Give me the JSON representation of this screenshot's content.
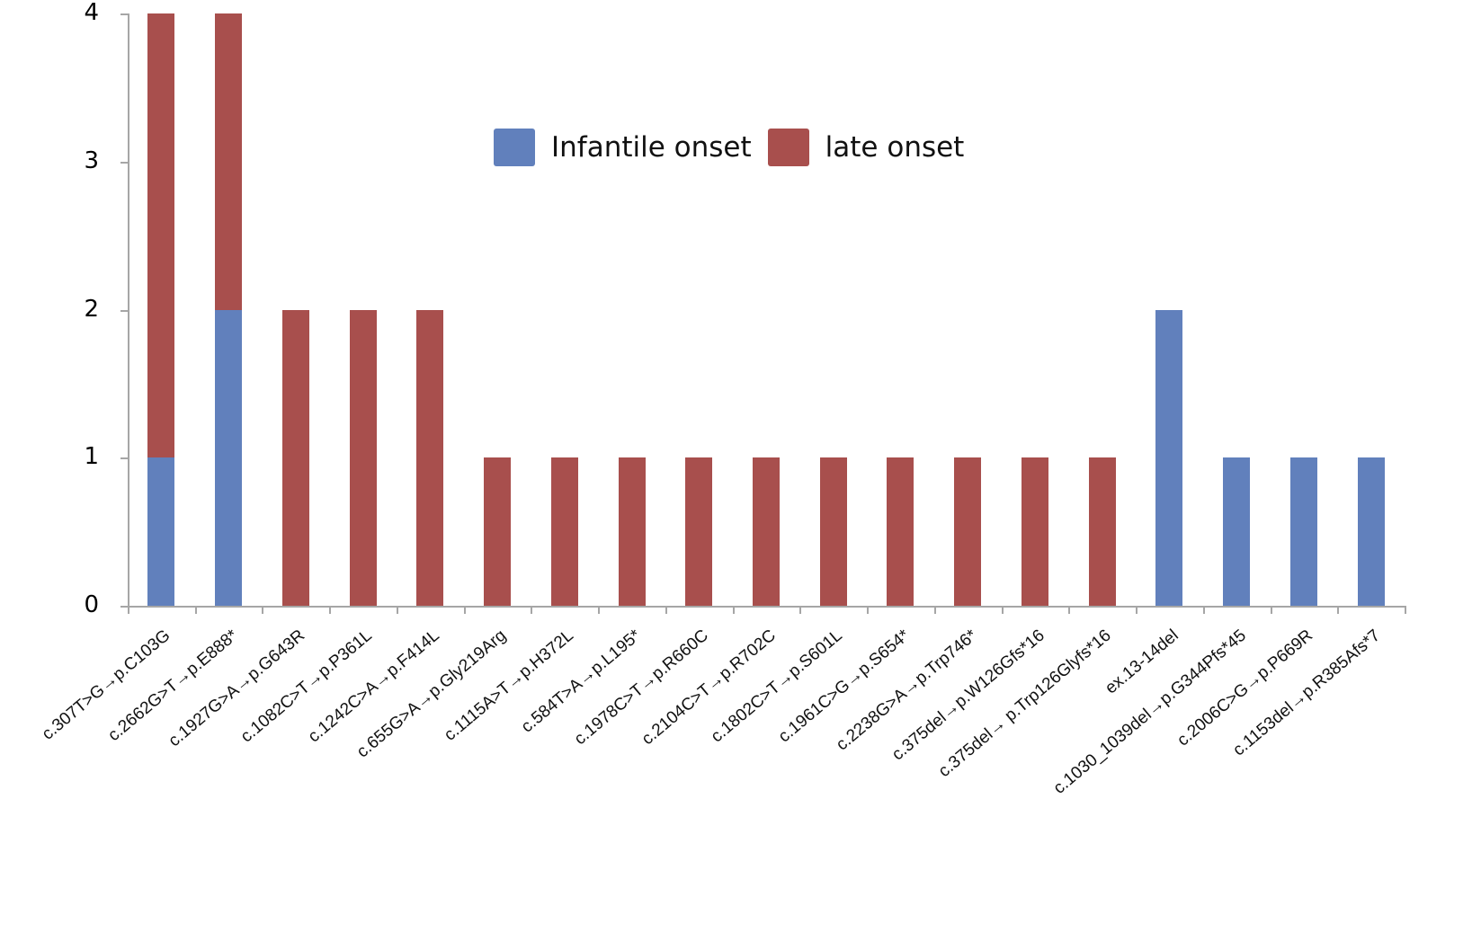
{
  "chart_data": {
    "type": "bar",
    "stacked": true,
    "title": "",
    "xlabel": "",
    "ylabel": "",
    "ylim": [
      0,
      4
    ],
    "yticks": [
      0,
      1,
      2,
      3,
      4
    ],
    "grid": false,
    "legend_position": "top-center (inside plot)",
    "categories": [
      "c.307T>G→p.C103G",
      "c.2662G>T→p.E888*",
      "c.1927G>A→p.G643R",
      "c.1082C>T→p.P361L",
      "c.1242C>A→p.F414L",
      "c.655G>A→p.Gly219Arg",
      "c.1115A>T→p.H372L",
      "c.584T>A→p.L195*",
      "c.1978C>T→p.R660C",
      "c.2104C>T→p.R702C",
      "c.1802C>T→p.S601L",
      "c.1961C>G→p.S654*",
      "c.2238G>A→p.Trp746*",
      "c.375del→p.W126Gfs*16",
      "c.375del→ p.Trp126Glyfs*16",
      "ex.13-14del",
      "c.1030_1039del→p.G344Pfs*45",
      "c.2006C>G→p.P669R",
      "c.1153del→p.R385Afs*7"
    ],
    "series": [
      {
        "name": "Infantile onset",
        "color": "#6180bc",
        "values": [
          1,
          2,
          0,
          0,
          0,
          0,
          0,
          0,
          0,
          0,
          0,
          0,
          0,
          0,
          0,
          2,
          1,
          1,
          1
        ]
      },
      {
        "name": "late onset",
        "color": "#a84f4d",
        "values": [
          3,
          2,
          2,
          2,
          2,
          1,
          1,
          1,
          1,
          1,
          1,
          1,
          1,
          1,
          1,
          0,
          0,
          0,
          0
        ]
      }
    ]
  },
  "legend": {
    "items": [
      {
        "label": "Infantile onset",
        "color": "#6180bc"
      },
      {
        "label": "late onset",
        "color": "#a84f4d"
      }
    ]
  },
  "axis": {
    "y_tick_labels": [
      "0",
      "1",
      "2",
      "3",
      "4"
    ],
    "axis_color": "#a6a6a6"
  }
}
